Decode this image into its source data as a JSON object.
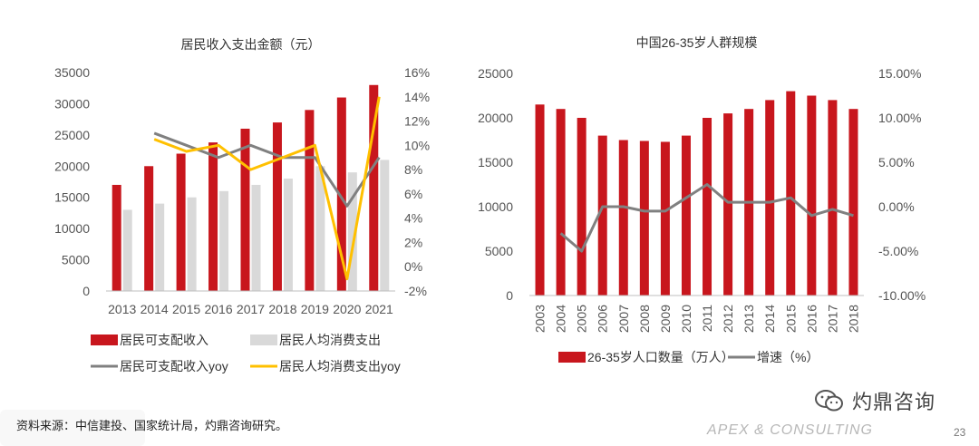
{
  "colors": {
    "red": "#c8161d",
    "gray_bar": "#d9d9d9",
    "gray_line": "#808080",
    "yellow": "#ffc000"
  },
  "chart_data": [
    {
      "type": "bar",
      "title": "居民收入支出金额（元）",
      "categories": [
        "2013",
        "2014",
        "2015",
        "2016",
        "2017",
        "2018",
        "2019",
        "2020",
        "2021"
      ],
      "ylim": [
        0,
        35000
      ],
      "y_ticks": [
        "0",
        "5000",
        "10000",
        "15000",
        "20000",
        "25000",
        "30000",
        "35000"
      ],
      "y2lim": [
        -2,
        16
      ],
      "y2_ticks": [
        "-2%",
        "0%",
        "2%",
        "4%",
        "6%",
        "8%",
        "10%",
        "12%",
        "14%",
        "16%"
      ],
      "series": [
        {
          "name": "居民可支配收入",
          "type": "bar",
          "color": "#c8161d",
          "values": [
            17000,
            20000,
            22000,
            23800,
            26000,
            27000,
            29000,
            31000,
            33000
          ]
        },
        {
          "name": "居民人均消费支出",
          "type": "bar",
          "color": "#d9d9d9",
          "values": [
            13000,
            14000,
            15000,
            16000,
            17000,
            18000,
            20000,
            19000,
            21000
          ]
        },
        {
          "name": "居民可支配收入yoy",
          "type": "line",
          "axis": "right",
          "color": "#808080",
          "values": [
            null,
            11.0,
            10.0,
            9.0,
            10.0,
            9.0,
            9.0,
            5.0,
            9.0
          ]
        },
        {
          "name": "居民人均消费支出yoy",
          "type": "line",
          "axis": "right",
          "color": "#ffc000",
          "values": [
            null,
            10.5,
            9.5,
            10.0,
            8.0,
            9.0,
            10.0,
            -1.0,
            14.0
          ]
        }
      ]
    },
    {
      "type": "bar",
      "title": "中国26-35岁人群规模",
      "categories": [
        "2003",
        "2004",
        "2005",
        "2006",
        "2007",
        "2008",
        "2009",
        "2010",
        "2011",
        "2012",
        "2013",
        "2014",
        "2015",
        "2016",
        "2017",
        "2018"
      ],
      "ylim": [
        0,
        25000
      ],
      "y_ticks": [
        "0",
        "5000",
        "10000",
        "15000",
        "20000",
        "25000"
      ],
      "y2lim": [
        -10,
        15
      ],
      "y2_ticks": [
        "-10.00%",
        "-5.00%",
        "0.00%",
        "5.00%",
        "10.00%",
        "15.00%"
      ],
      "series": [
        {
          "name": "26-35岁人口数量（万人）",
          "type": "bar",
          "color": "#c8161d",
          "values": [
            21500,
            21000,
            20000,
            18000,
            17500,
            17400,
            17300,
            18000,
            20000,
            20500,
            21000,
            22000,
            23000,
            22500,
            22000,
            21000
          ]
        },
        {
          "name": "增速（%）",
          "type": "line",
          "axis": "right",
          "color": "#808080",
          "values": [
            null,
            -3.0,
            -5.0,
            0.0,
            0.0,
            -0.5,
            -0.5,
            1.0,
            2.5,
            0.5,
            0.5,
            0.5,
            1.0,
            -1.0,
            -0.3,
            -1.0
          ]
        }
      ]
    }
  ],
  "footer": {
    "source": "资料来源：中信建投、国家统计局，灼鼎咨询研究。",
    "brand_cn": "灼鼎咨询",
    "brand_en": "APEX & CONSULTING",
    "page": "23"
  }
}
